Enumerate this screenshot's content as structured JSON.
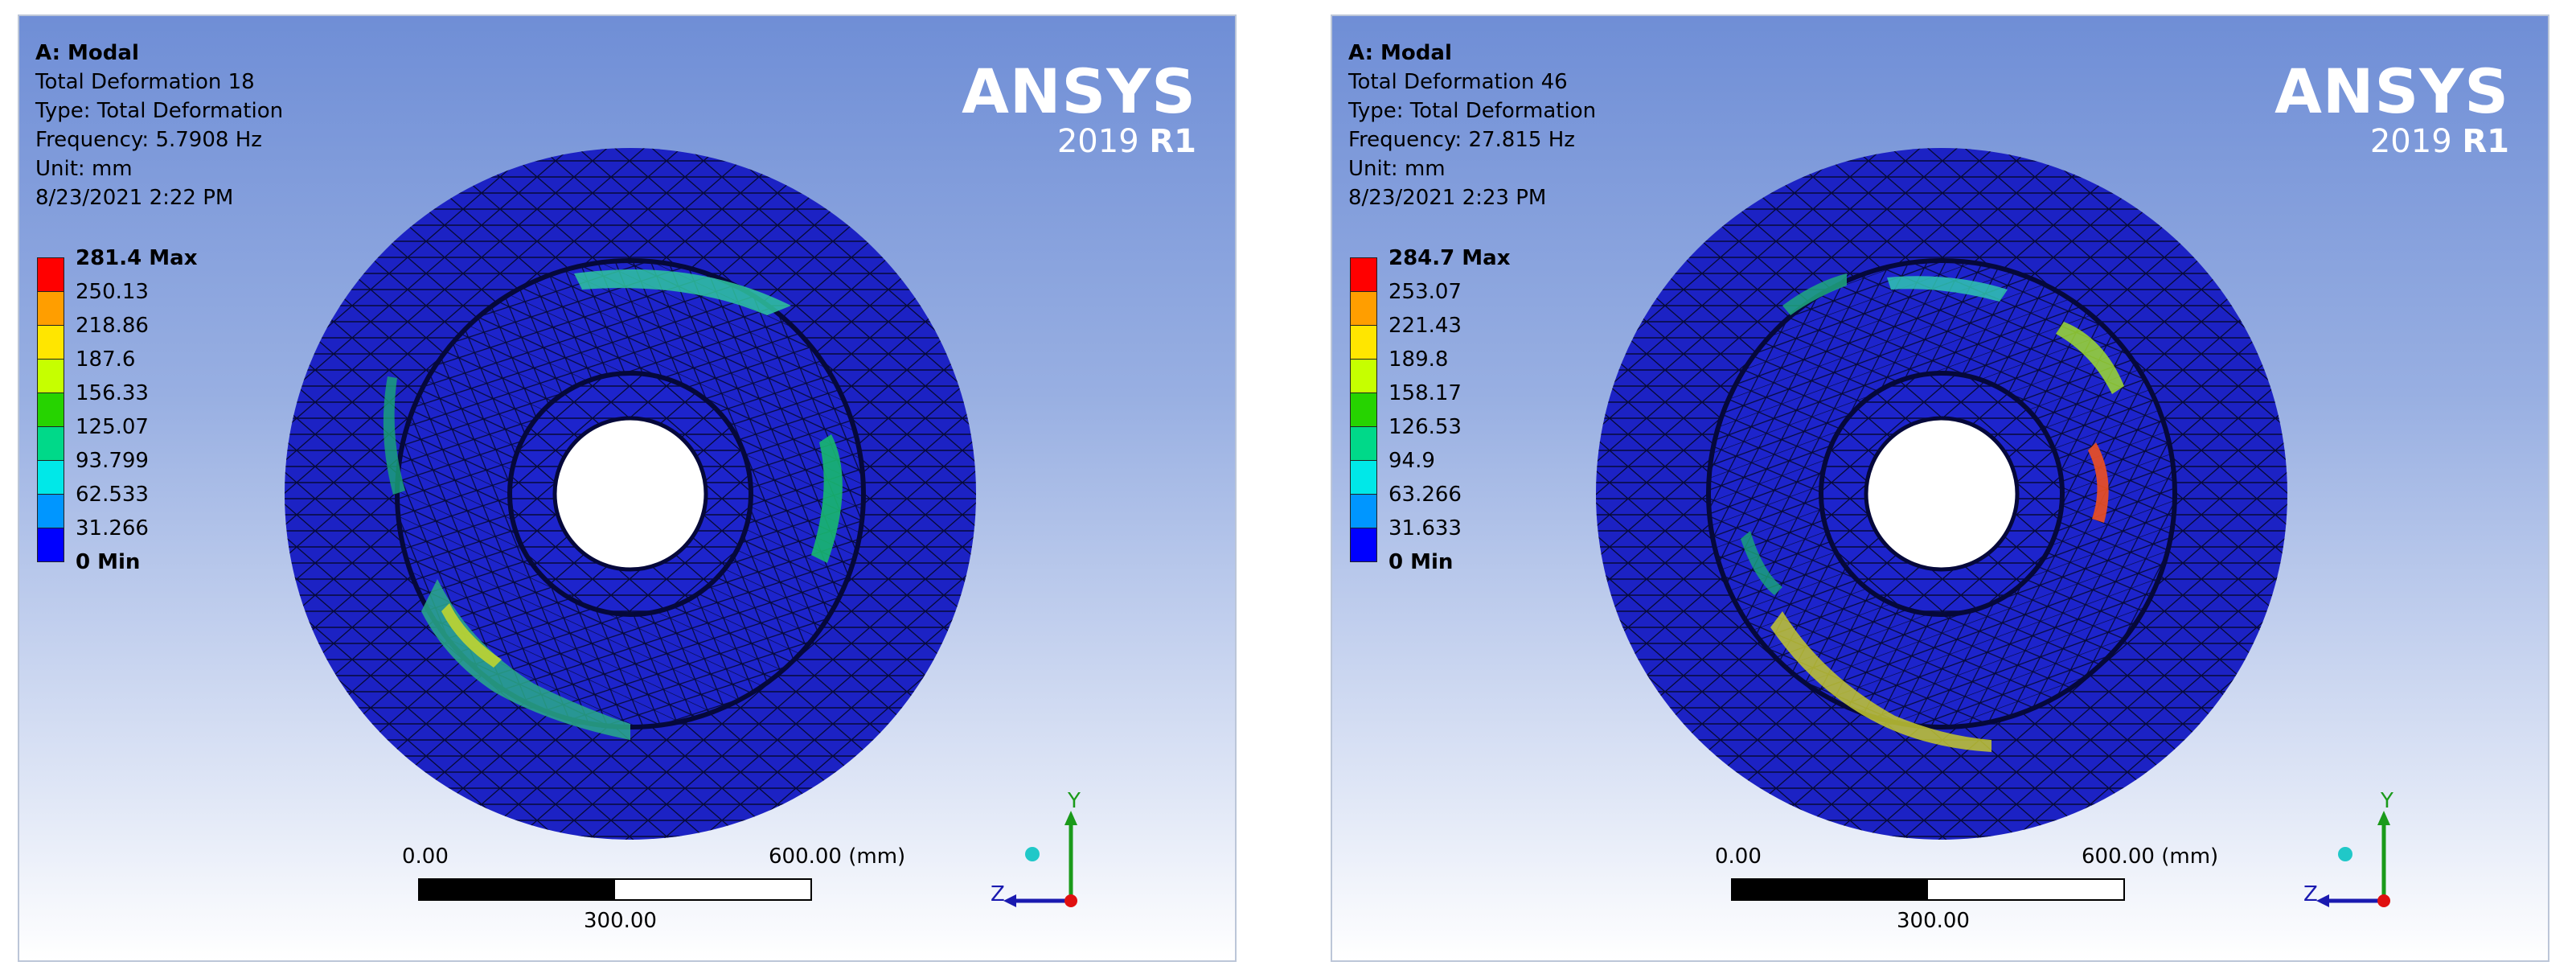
{
  "panels": [
    {
      "title": "A: Modal",
      "result": "Total Deformation 18",
      "type": "Type: Total Deformation",
      "frequency": "Frequency: 5.7908 Hz",
      "unit": "Unit: mm",
      "timestamp": "8/23/2021 2:22 PM",
      "legend": [
        "281.4 Max",
        "250.13",
        "218.86",
        "187.6",
        "156.33",
        "125.07",
        "93.799",
        "62.533",
        "31.266",
        "0 Min"
      ]
    },
    {
      "title": "A: Modal",
      "result": "Total Deformation 46",
      "type": "Type: Total Deformation",
      "frequency": "Frequency: 27.815 Hz",
      "unit": "Unit: mm",
      "timestamp": "8/23/2021 2:23 PM",
      "legend": [
        "284.7 Max",
        "253.07",
        "221.43",
        "189.8",
        "158.17",
        "126.53",
        "94.9",
        "63.266",
        "31.633",
        "0 Min"
      ]
    }
  ],
  "logo": {
    "brand": "ANSYS",
    "version": "2019",
    "release": "R1"
  },
  "scale_bar": {
    "start": "0.00",
    "end": "600.00 (mm)",
    "mid": "300.00"
  },
  "triad": {
    "y": "Y",
    "z": "Z"
  },
  "legend_colors": [
    "#ff0000",
    "#ff9e00",
    "#ffe600",
    "#c6ff00",
    "#26d300",
    "#00d989",
    "#00e8e8",
    "#0096ff",
    "#0000ff"
  ]
}
